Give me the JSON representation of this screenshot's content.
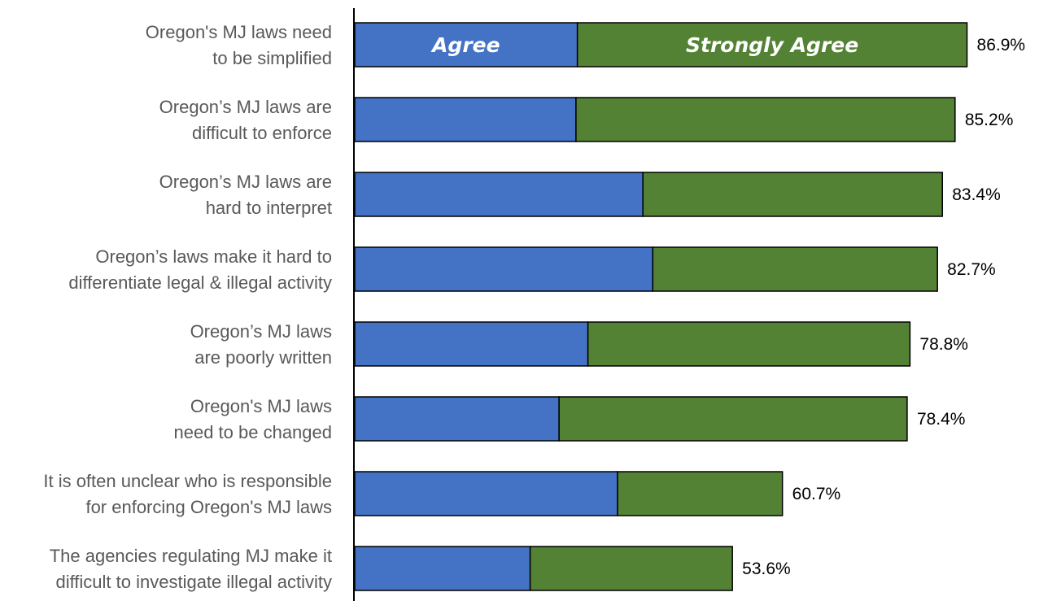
{
  "chart_data": {
    "type": "bar",
    "orientation": "horizontal",
    "stacked": true,
    "categories": [
      [
        "Oregon's MJ laws need",
        "to be simplified"
      ],
      [
        "Oregon’s MJ laws are",
        "difficult to enforce"
      ],
      [
        "Oregon’s MJ laws are",
        "hard to interpret"
      ],
      [
        "Oregon’s laws make it hard to",
        "differentiate legal & illegal activity"
      ],
      [
        "Oregon’s MJ laws",
        "are poorly written"
      ],
      [
        "Oregon's MJ laws",
        "need to be changed"
      ],
      [
        "It is often unclear who is responsible",
        "for enforcing Oregon's MJ laws"
      ],
      [
        "The agencies regulating MJ make it",
        "difficult to investigate illegal activity"
      ]
    ],
    "series": [
      {
        "name": "Agree",
        "values": [
          31.6,
          31.4,
          40.9,
          42.3,
          33.1,
          29.0,
          37.3,
          24.9
        ]
      },
      {
        "name": "Strongly Agree",
        "values": [
          55.3,
          53.8,
          42.5,
          40.4,
          45.7,
          49.4,
          23.4,
          28.7
        ]
      }
    ],
    "totals": [
      86.9,
      85.2,
      83.4,
      82.7,
      78.8,
      78.4,
      60.7,
      53.6
    ],
    "total_labels": [
      "86.9%",
      "85.2%",
      "83.4%",
      "82.7%",
      "78.8%",
      "78.4%",
      "60.7%",
      "53.6%"
    ],
    "xlim": [
      0,
      100
    ],
    "grid": false,
    "legend": "in-bar labels on first bar",
    "colors": {
      "Agree": "#4472c4",
      "Strongly Agree": "#548235"
    },
    "title": "",
    "xlabel": "",
    "ylabel": ""
  }
}
